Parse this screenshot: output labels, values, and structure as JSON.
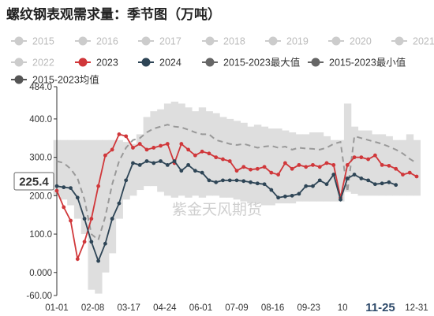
{
  "title": "螺纹钢表观需求量：季节图（万吨）",
  "watermark": "紫金天风期货",
  "chart_data": {
    "type": "line",
    "title": "螺纹钢表观需求量：季节图（万吨）",
    "xlabel": "",
    "ylabel": "",
    "ylim": [
      -60,
      484
    ],
    "y_ticks": [
      "484.0",
      "400.0",
      "300.0",
      "200.0",
      "100.0",
      "0.000",
      "-60.00"
    ],
    "x_ticks": [
      "01-01",
      "02-08",
      "03-17",
      "04-24",
      "06-01",
      "07-09",
      "08-16",
      "09-23",
      "10",
      "11-25",
      "12-31"
    ],
    "cursor_x_label": "11-25",
    "cursor_y_label": "225.4",
    "grid": false,
    "legend_position": "top",
    "legend": [
      {
        "name": "2015",
        "color": "#cccccc",
        "style": "marker",
        "active": false
      },
      {
        "name": "2016",
        "color": "#cccccc",
        "style": "marker",
        "active": false
      },
      {
        "name": "2017",
        "color": "#cccccc",
        "style": "marker",
        "active": false
      },
      {
        "name": "2018",
        "color": "#cccccc",
        "style": "marker",
        "active": false
      },
      {
        "name": "2019",
        "color": "#cccccc",
        "style": "marker",
        "active": false
      },
      {
        "name": "2020",
        "color": "#cccccc",
        "style": "marker",
        "active": false
      },
      {
        "name": "2021",
        "color": "#cccccc",
        "style": "marker",
        "active": false
      },
      {
        "name": "2022",
        "color": "#cccccc",
        "style": "marker",
        "active": false
      },
      {
        "name": "2023",
        "color": "#d0373a",
        "style": "marker",
        "active": true
      },
      {
        "name": "2024",
        "color": "#2e4556",
        "style": "marker",
        "active": true
      },
      {
        "name": "2015-2023最大值",
        "color": "#666666",
        "style": "marker",
        "active": true
      },
      {
        "name": "2015-2023最小值",
        "color": "#666666",
        "style": "marker",
        "active": true
      },
      {
        "name": "2015-2023均值",
        "color": "#555555",
        "style": "marker",
        "active": true
      }
    ],
    "range_band": {
      "name_max": "2015-2023最大值",
      "name_min": "2015-2023最小值",
      "color": "#dedede",
      "x": [
        1,
        2,
        3,
        4,
        5,
        6,
        7,
        8,
        9,
        10,
        11,
        12,
        13,
        14,
        15,
        16,
        17,
        18,
        19,
        20,
        21,
        22,
        23,
        24,
        25,
        26,
        27,
        28,
        29,
        30,
        31,
        32,
        33,
        34,
        35,
        36,
        37,
        38,
        39,
        40,
        41,
        42,
        43,
        44,
        45,
        46,
        47,
        48,
        49,
        50,
        51,
        52,
        53
      ],
      "max": [
        345,
        345,
        345,
        345,
        345,
        345,
        345,
        345,
        345,
        345,
        340,
        335,
        360,
        405,
        420,
        425,
        440,
        445,
        440,
        430,
        420,
        430,
        420,
        415,
        405,
        400,
        395,
        390,
        380,
        385,
        380,
        375,
        375,
        370,
        365,
        360,
        360,
        365,
        365,
        355,
        345,
        345,
        440,
        380,
        370,
        370,
        360,
        360,
        355,
        345,
        345,
        360,
        345
      ],
      "min": [
        200,
        190,
        175,
        140,
        100,
        -45,
        -55,
        0,
        50,
        140,
        190,
        200,
        215,
        225,
        225,
        210,
        200,
        195,
        200,
        195,
        200,
        195,
        200,
        200,
        195,
        195,
        190,
        185,
        180,
        180,
        175,
        175,
        180,
        180,
        180,
        185,
        185,
        185,
        185,
        185,
        185,
        185,
        210,
        205,
        200,
        200,
        200,
        200,
        200,
        200,
        200,
        200,
        200
      ]
    },
    "series": [
      {
        "name": "2015-2023均值",
        "color": "#999999",
        "dash": true,
        "x": [
          1,
          2,
          3,
          4,
          5,
          6,
          7,
          8,
          9,
          10,
          11,
          12,
          13,
          14,
          15,
          16,
          17,
          18,
          19,
          20,
          21,
          22,
          23,
          24,
          25,
          26,
          27,
          28,
          29,
          30,
          31,
          32,
          33,
          34,
          35,
          36,
          37,
          38,
          39,
          40,
          41,
          42,
          43,
          44,
          45,
          46,
          47,
          48,
          49,
          50,
          51,
          52,
          53
        ],
        "values": [
          290,
          285,
          270,
          245,
          190,
          100,
          85,
          145,
          230,
          290,
          325,
          345,
          350,
          365,
          375,
          380,
          385,
          380,
          378,
          372,
          365,
          360,
          360,
          345,
          340,
          335,
          332,
          335,
          330,
          325,
          328,
          330,
          325,
          328,
          320,
          325,
          323,
          322,
          320,
          325,
          335,
          340,
          210,
          355,
          350,
          345,
          340,
          335,
          328,
          320,
          310,
          296,
          285
        ]
      },
      {
        "name": "2023",
        "color": "#d0373a",
        "dash": false,
        "x": [
          1,
          2,
          3,
          4,
          5,
          6,
          7,
          8,
          9,
          10,
          11,
          12,
          13,
          14,
          15,
          16,
          17,
          18,
          19,
          20,
          21,
          22,
          23,
          24,
          25,
          26,
          27,
          28,
          29,
          30,
          31,
          32,
          33,
          34,
          35,
          36,
          37,
          38,
          39,
          40,
          41,
          42,
          43,
          44,
          45,
          46,
          47,
          48,
          49,
          50,
          51,
          52,
          53
        ],
        "values": [
          213,
          170,
          135,
          35,
          80,
          140,
          225,
          305,
          320,
          360,
          355,
          325,
          335,
          320,
          325,
          330,
          335,
          285,
          335,
          320,
          305,
          315,
          310,
          300,
          295,
          290,
          265,
          275,
          268,
          270,
          275,
          260,
          255,
          285,
          270,
          280,
          275,
          280,
          275,
          285,
          280,
          195,
          280,
          300,
          300,
          295,
          305,
          280,
          278,
          270,
          255,
          260,
          250
        ]
      },
      {
        "name": "2024",
        "color": "#2e4556",
        "dash": false,
        "x": [
          1,
          2,
          3,
          4,
          5,
          6,
          7,
          8,
          9,
          10,
          11,
          12,
          13,
          14,
          15,
          16,
          17,
          18,
          19,
          20,
          21,
          22,
          23,
          24,
          25,
          26,
          27,
          28,
          29,
          30,
          31,
          32,
          33,
          34,
          35,
          36,
          37,
          38,
          39,
          40,
          41,
          42,
          43,
          44,
          45,
          46,
          47,
          48,
          49,
          50
        ],
        "values": [
          225,
          222,
          220,
          195,
          140,
          80,
          30,
          75,
          140,
          180,
          240,
          285,
          280,
          290,
          285,
          290,
          280,
          290,
          265,
          280,
          265,
          260,
          240,
          235,
          240,
          240,
          240,
          238,
          235,
          232,
          230,
          215,
          195,
          198,
          200,
          205,
          225,
          225,
          240,
          230,
          255,
          190,
          245,
          255,
          245,
          240,
          230,
          232,
          235,
          228
        ]
      }
    ]
  }
}
